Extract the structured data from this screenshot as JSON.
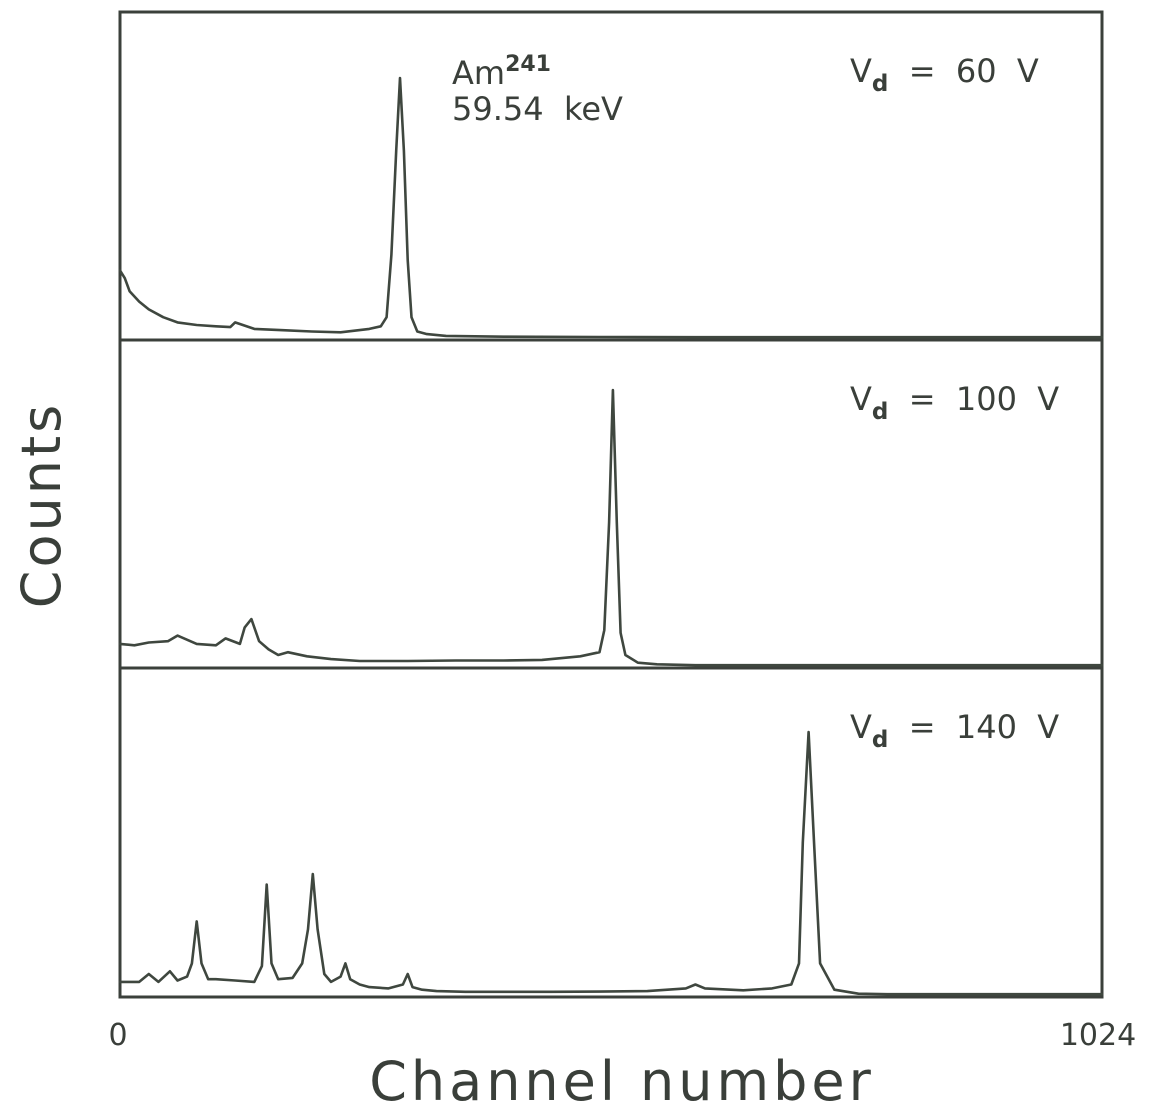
{
  "chart_data": {
    "type": "line",
    "xlabel": "Channel number",
    "ylabel": "Counts",
    "xlim": [
      0,
      1024
    ],
    "x_tick_labels": [
      "0",
      "1024"
    ],
    "grid": false,
    "panels": [
      {
        "name": "",
        "label_main": "V",
        "label_sub": "d",
        "label_rest": " = 60 V",
        "annotation_line1_main": "Am",
        "annotation_line1_sup": "241",
        "annotation_line2": "59.54 keV",
        "x": [
          0,
          5,
          10,
          20,
          30,
          45,
          60,
          80,
          100,
          115,
          120,
          140,
          170,
          200,
          230,
          260,
          272,
          278,
          283,
          288,
          292,
          296,
          300,
          304,
          310,
          320,
          340,
          400,
          500,
          600,
          700,
          800,
          900,
          1024
        ],
        "y": [
          26,
          23,
          18,
          14,
          11,
          8,
          6,
          5,
          4.5,
          4.2,
          6,
          3.5,
          3,
          2.5,
          2.2,
          3.5,
          4.5,
          8,
          32,
          72,
          100,
          72,
          30,
          8,
          2.5,
          1.5,
          0.8,
          0.5,
          0.4,
          0.3,
          0.3,
          0.3,
          0.3,
          0.3
        ]
      },
      {
        "name": "",
        "label_main": "V",
        "label_sub": "d",
        "label_rest": " = 100 V",
        "x": [
          0,
          15,
          30,
          50,
          60,
          80,
          100,
          110,
          125,
          130,
          137,
          145,
          155,
          165,
          175,
          195,
          220,
          250,
          300,
          350,
          400,
          440,
          480,
          500,
          505,
          510,
          514,
          518,
          522,
          527,
          540,
          560,
          600,
          700,
          800,
          900,
          1024
        ],
        "y": [
          8,
          7.5,
          8.5,
          9,
          11,
          8,
          7.5,
          10,
          8,
          14,
          17,
          9,
          6,
          4,
          5,
          3.5,
          2.5,
          1.8,
          1.8,
          2,
          2,
          2.2,
          3.5,
          5,
          13,
          52,
          100,
          52,
          12,
          4,
          1.2,
          0.6,
          0.3,
          0.3,
          0.3,
          0.3,
          0.3
        ]
      },
      {
        "name": "",
        "label_main": "V",
        "label_sub": "d",
        "label_rest": " = 140 V",
        "x": [
          0,
          20,
          30,
          40,
          52,
          60,
          70,
          75,
          80,
          85,
          92,
          100,
          120,
          140,
          148,
          153,
          158,
          165,
          180,
          190,
          196,
          201,
          206,
          213,
          220,
          230,
          235,
          240,
          250,
          260,
          280,
          295,
          300,
          305,
          315,
          330,
          360,
          400,
          450,
          500,
          550,
          590,
          600,
          610,
          650,
          680,
          700,
          708,
          712,
          718,
          724,
          730,
          745,
          770,
          800,
          900,
          1024
        ],
        "y": [
          5,
          5,
          8,
          5,
          9,
          5.5,
          7,
          12,
          28,
          12,
          6,
          6,
          5.5,
          5,
          11,
          42,
          12,
          6,
          6.5,
          12,
          25,
          46,
          25,
          8,
          5,
          7,
          12,
          6,
          4,
          3,
          2.5,
          4,
          8,
          3,
          2,
          1.5,
          1.2,
          1.2,
          1.2,
          1.3,
          1.5,
          2.5,
          4,
          2.5,
          1.8,
          2.5,
          4,
          12,
          58,
          100,
          56,
          12,
          2,
          0.5,
          0.3,
          0.3,
          0.3
        ]
      }
    ]
  }
}
